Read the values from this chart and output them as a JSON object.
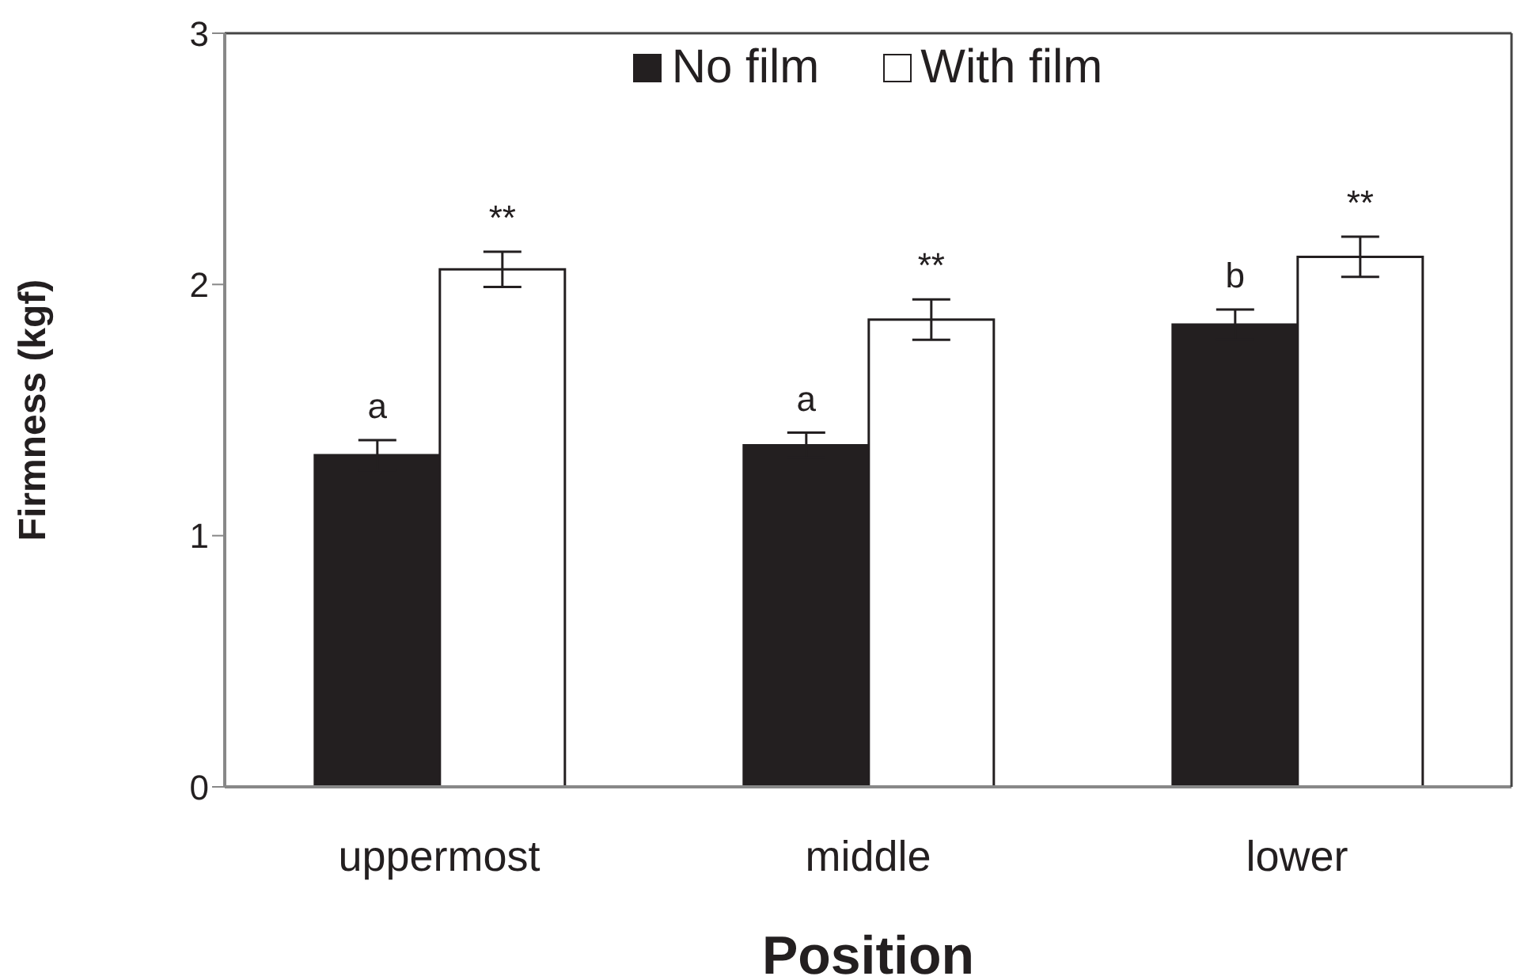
{
  "chart_data": {
    "type": "bar",
    "xlabel": "Position",
    "ylabel": "Firmness (kgf)",
    "categories": [
      "uppermost",
      "middle",
      "lower"
    ],
    "series": [
      {
        "name": "No film",
        "color": "#231f20",
        "values": [
          1.32,
          1.36,
          1.84
        ],
        "errors": [
          0.06,
          0.05,
          0.06
        ]
      },
      {
        "name": "With film",
        "color": "#ffffff",
        "values": [
          2.06,
          1.86,
          2.11
        ],
        "errors": [
          0.07,
          0.08,
          0.08
        ]
      }
    ],
    "ylim": [
      0,
      3
    ],
    "yticks": [
      0,
      1,
      2,
      3
    ],
    "grid": false,
    "legend": "top",
    "annotations": [
      {
        "text": "a",
        "x": "uppermost",
        "y": 1.32
      },
      {
        "text": "**",
        "x": "uppermost",
        "y": 2.06
      },
      {
        "text": "a",
        "x": "middle",
        "y": 1.36
      },
      {
        "text": "**",
        "x": "middle",
        "y": 1.86
      },
      {
        "text": "b",
        "x": "lower",
        "y": 1.84
      },
      {
        "text": "**",
        "x": "lower",
        "y": 2.11
      }
    ]
  }
}
